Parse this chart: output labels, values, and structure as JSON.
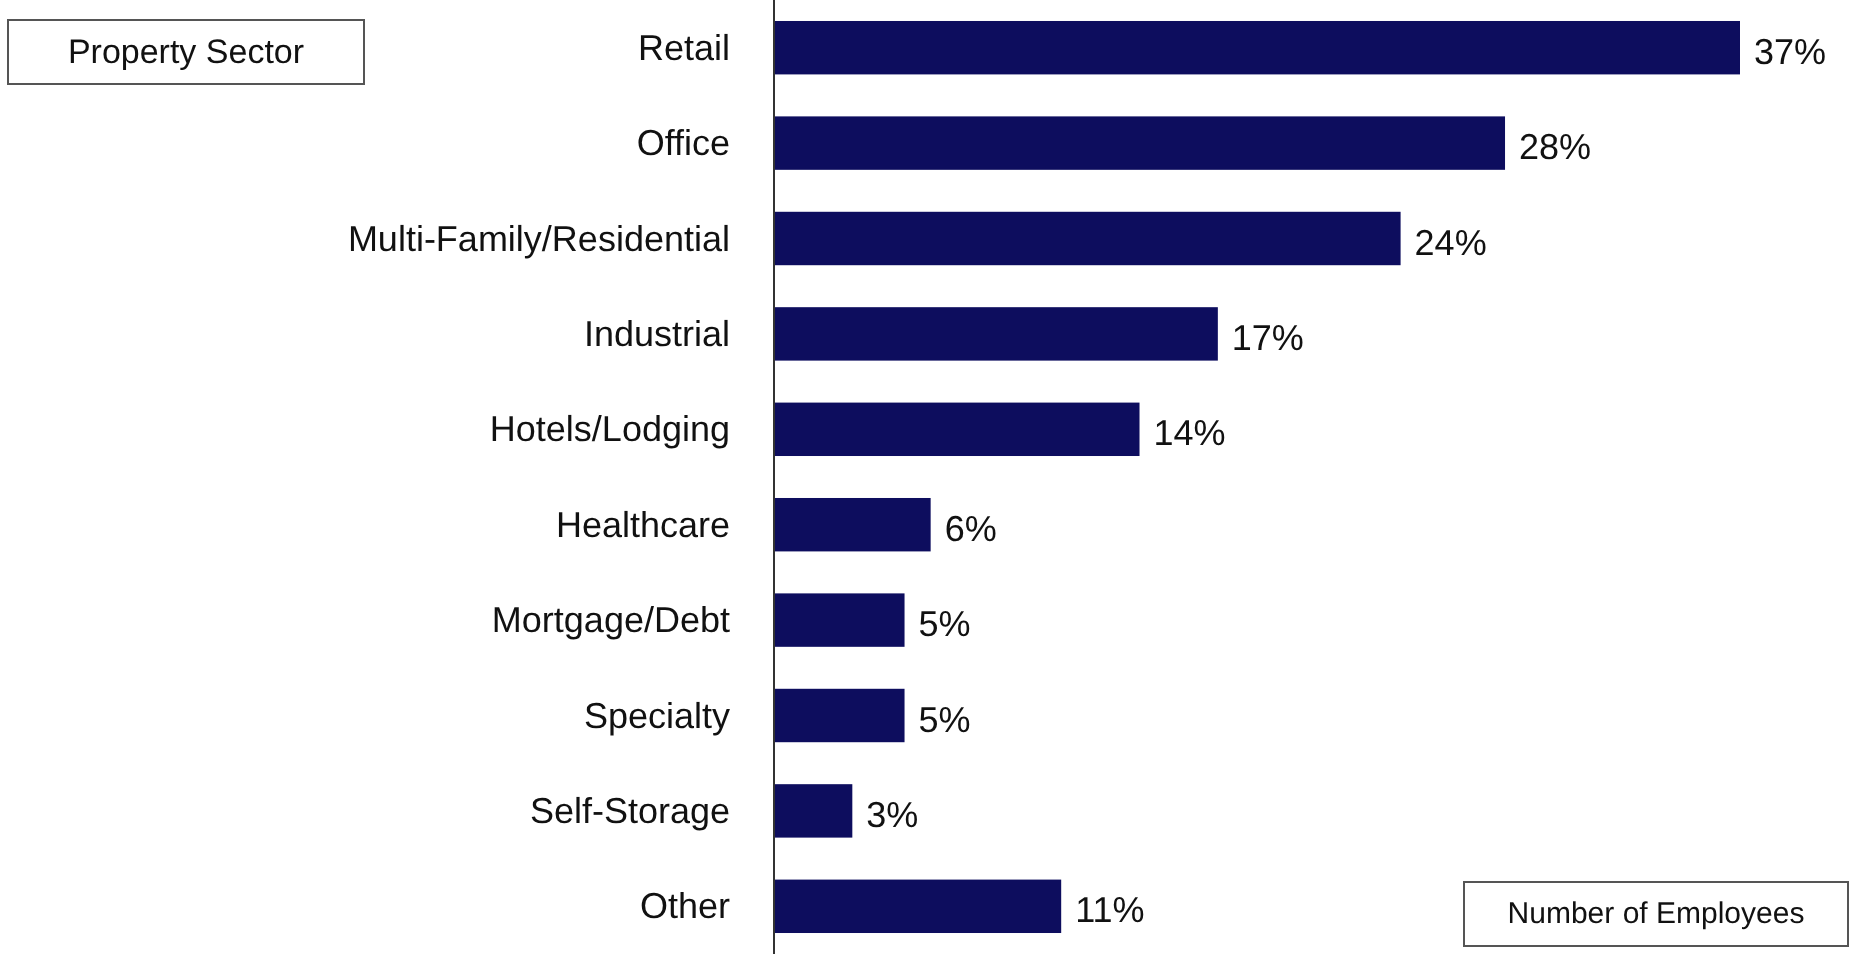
{
  "chart_data": {
    "type": "bar",
    "orientation": "horizontal",
    "ylabel": "Property Sector",
    "xlabel": "Number of Employees",
    "categories": [
      "Retail",
      "Office",
      "Multi-Family/Residential",
      "Industrial",
      "Hotels/Lodging",
      "Healthcare",
      "Mortgage/Debt",
      "Specialty",
      "Self-Storage",
      "Other"
    ],
    "values": [
      37,
      28,
      24,
      17,
      14,
      6,
      5,
      5,
      3,
      11
    ],
    "value_labels": [
      "37%",
      "28%",
      "24%",
      "17%",
      "14%",
      "6%",
      "5%",
      "5%",
      "3%",
      "11%"
    ],
    "color": "#0d0d5e"
  }
}
